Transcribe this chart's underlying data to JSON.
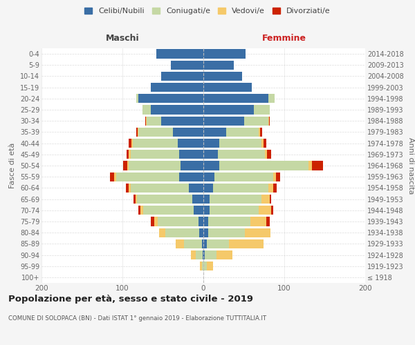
{
  "age_groups": [
    "100+",
    "95-99",
    "90-94",
    "85-89",
    "80-84",
    "75-79",
    "70-74",
    "65-69",
    "60-64",
    "55-59",
    "50-54",
    "45-49",
    "40-44",
    "35-39",
    "30-34",
    "25-29",
    "20-24",
    "15-19",
    "10-14",
    "5-9",
    "0-4"
  ],
  "birth_years": [
    "≤ 1918",
    "1919-1923",
    "1924-1928",
    "1929-1933",
    "1934-1938",
    "1939-1943",
    "1944-1948",
    "1949-1953",
    "1954-1958",
    "1959-1963",
    "1964-1968",
    "1969-1973",
    "1974-1978",
    "1979-1983",
    "1984-1988",
    "1989-1993",
    "1994-1998",
    "1999-2003",
    "2004-2008",
    "2009-2013",
    "2014-2018"
  ],
  "males": {
    "celibi": [
      0,
      0,
      1,
      2,
      5,
      6,
      12,
      14,
      18,
      30,
      28,
      30,
      32,
      38,
      52,
      65,
      80,
      65,
      52,
      40,
      58
    ],
    "coniugati": [
      0,
      2,
      8,
      22,
      42,
      50,
      62,
      68,
      72,
      78,
      64,
      60,
      55,
      42,
      18,
      10,
      3,
      0,
      0,
      0,
      0
    ],
    "vedovi": [
      0,
      2,
      6,
      10,
      8,
      5,
      4,
      2,
      2,
      2,
      2,
      2,
      2,
      1,
      1,
      0,
      0,
      0,
      0,
      0,
      0
    ],
    "divorziati": [
      0,
      0,
      0,
      0,
      0,
      4,
      2,
      2,
      4,
      5,
      5,
      3,
      3,
      2,
      1,
      0,
      0,
      0,
      0,
      0,
      0
    ]
  },
  "females": {
    "nubili": [
      0,
      0,
      2,
      4,
      6,
      6,
      8,
      8,
      12,
      14,
      20,
      18,
      20,
      28,
      50,
      62,
      80,
      60,
      48,
      38,
      52
    ],
    "coniugate": [
      0,
      4,
      14,
      28,
      45,
      52,
      60,
      64,
      68,
      72,
      110,
      58,
      52,
      40,
      30,
      20,
      8,
      0,
      0,
      0,
      0
    ],
    "vedove": [
      0,
      8,
      20,
      42,
      32,
      20,
      16,
      10,
      6,
      4,
      4,
      3,
      2,
      2,
      1,
      0,
      0,
      0,
      0,
      0,
      0
    ],
    "divorziate": [
      0,
      0,
      0,
      0,
      0,
      4,
      2,
      2,
      5,
      5,
      14,
      5,
      4,
      3,
      1,
      0,
      0,
      0,
      0,
      0,
      0
    ]
  },
  "colors": {
    "celibi": "#3a6ea5",
    "coniugati": "#c5d8a4",
    "vedovi": "#f5c96a",
    "divorziati": "#cc2200"
  },
  "xlim": 200,
  "title": "Popolazione per età, sesso e stato civile - 2019",
  "subtitle": "COMUNE DI SOLOPACA (BN) - Dati ISTAT 1° gennaio 2019 - Elaborazione TUTTITALIA.IT",
  "ylabel": "Fasce di età",
  "ylabel_right": "Anni di nascita",
  "xlabel_maschi": "Maschi",
  "xlabel_femmine": "Femmine",
  "legend_labels": [
    "Celibi/Nubili",
    "Coniugati/e",
    "Vedovi/e",
    "Divorziati/e"
  ],
  "background_color": "#f5f5f5",
  "plot_bg_color": "#ffffff",
  "grid_color": "#cccccc"
}
